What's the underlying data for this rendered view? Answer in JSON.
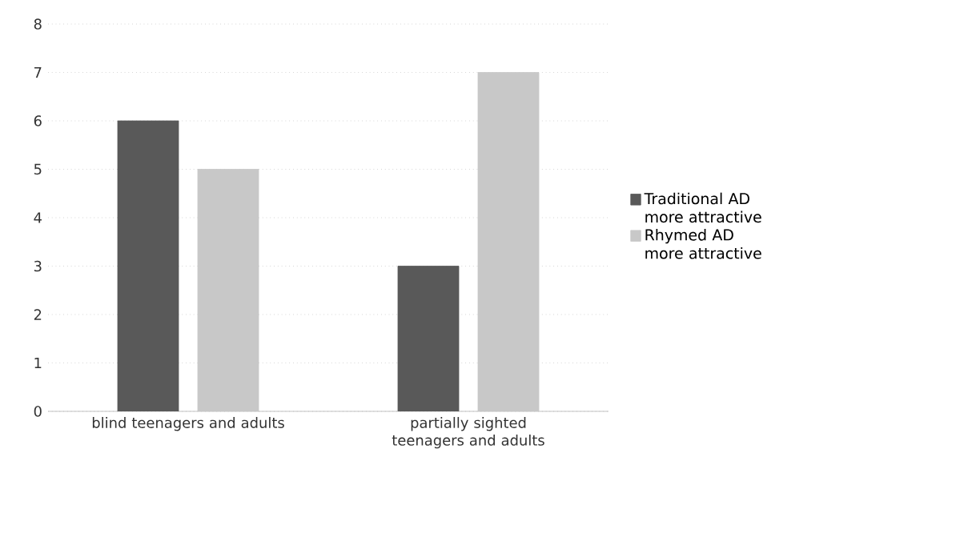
{
  "chart_data": {
    "type": "bar",
    "categories": [
      "blind teenagers and adults",
      "partially sighted teenagers and adults"
    ],
    "series": [
      {
        "name": "Traditional AD more attractive",
        "color": "#595959",
        "values": [
          6,
          3
        ]
      },
      {
        "name": "Rhymed AD more attractive",
        "color": "#c8c8c8",
        "values": [
          5,
          7
        ]
      }
    ],
    "ylim": [
      0,
      8
    ],
    "yticks": [
      0,
      1,
      2,
      3,
      4,
      5,
      6,
      7,
      8
    ],
    "grid": "y",
    "legend": "right"
  }
}
